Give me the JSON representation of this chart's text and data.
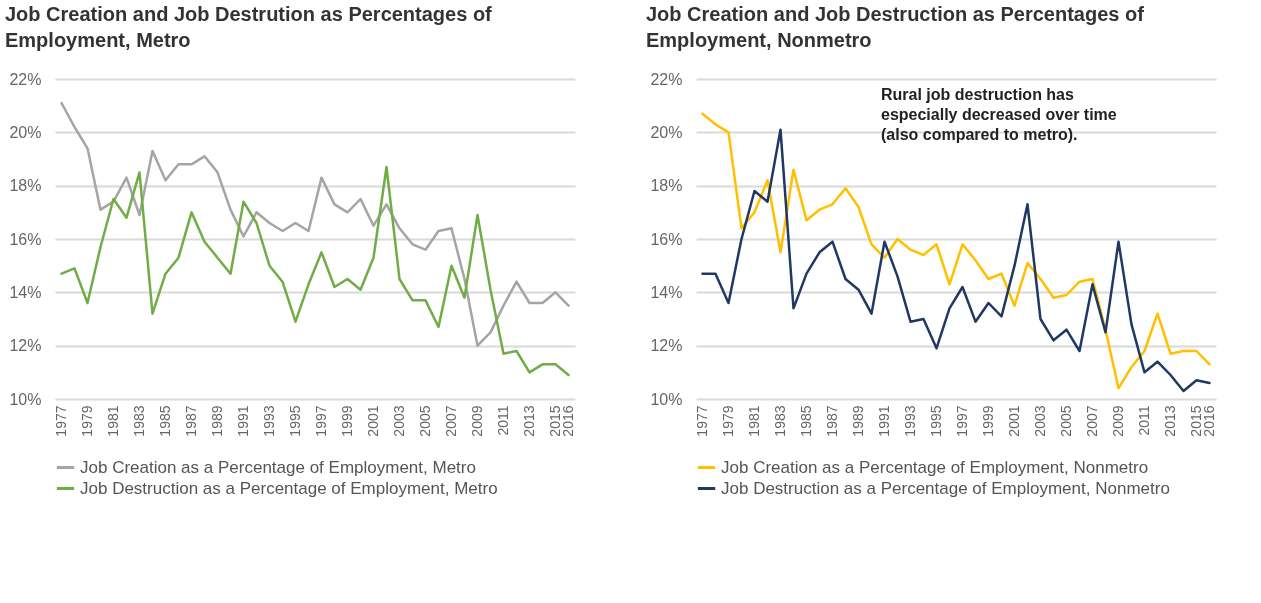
{
  "chart_data": [
    {
      "type": "line",
      "title": "Job Creation and Job Destrution as Percentages of Employment, Metro",
      "categories": [
        "1977",
        null,
        "1979",
        null,
        "1981",
        null,
        "1983",
        null,
        "1985",
        null,
        "1987",
        null,
        "1989",
        null,
        "1991",
        null,
        "1993",
        null,
        "1995",
        null,
        "1997",
        null,
        "1999",
        null,
        "2001",
        null,
        "2003",
        null,
        "2005",
        null,
        "2007",
        null,
        "2009",
        null,
        "2011",
        null,
        "2013",
        null,
        "2015",
        "2016"
      ],
      "series": [
        {
          "name": "Job Creation as a Percentage of Employment, Metro",
          "color": "#a5a5a5",
          "values": [
            21.1,
            20.2,
            19.4,
            17.1,
            17.4,
            18.3,
            16.9,
            19.3,
            18.2,
            18.8,
            18.8,
            19.1,
            18.5,
            17.1,
            16.1,
            17.0,
            16.6,
            16.3,
            16.6,
            16.3,
            18.3,
            17.3,
            17.0,
            17.5,
            16.5,
            17.3,
            16.4,
            15.8,
            15.6,
            16.3,
            16.4,
            14.5,
            12.0,
            12.5,
            13.5,
            14.4,
            13.6,
            13.6,
            14.0,
            13.5
          ]
        },
        {
          "name": "Job Destruction as a Percentage of Employment, Metro",
          "color": "#70ad47",
          "values": [
            14.7,
            14.9,
            13.6,
            15.7,
            17.5,
            16.8,
            18.5,
            13.2,
            14.7,
            15.3,
            17.0,
            15.9,
            15.3,
            14.7,
            17.4,
            16.6,
            15.0,
            14.4,
            12.9,
            14.3,
            15.5,
            14.2,
            14.5,
            14.1,
            15.3,
            18.7,
            14.5,
            13.7,
            13.7,
            12.7,
            15.0,
            13.8,
            16.9,
            14.1,
            11.7,
            11.8,
            11.0,
            11.3,
            11.3,
            10.9
          ]
        }
      ],
      "ylim": [
        10,
        22
      ],
      "yticks": [
        {
          "value": 10,
          "label": "10%"
        },
        {
          "value": 12,
          "label": "12%"
        },
        {
          "value": 14,
          "label": "14%"
        },
        {
          "value": 16,
          "label": "16%"
        },
        {
          "value": 18,
          "label": "18%"
        },
        {
          "value": 20,
          "label": "20%"
        },
        {
          "value": 22,
          "label": "22%"
        }
      ],
      "grid": "y",
      "legend": "bottom",
      "line_style": "solid"
    },
    {
      "type": "line",
      "title": "Job Creation and Job Destruction as Percentages of Employment, Nonmetro",
      "categories": [
        "1977",
        null,
        "1979",
        null,
        "1981",
        null,
        "1983",
        null,
        "1985",
        null,
        "1987",
        null,
        "1989",
        null,
        "1991",
        null,
        "1993",
        null,
        "1995",
        null,
        "1997",
        null,
        "1999",
        null,
        "2001",
        null,
        "2003",
        null,
        "2005",
        null,
        "2007",
        null,
        "2009",
        null,
        "2011",
        null,
        "2013",
        null,
        "2015",
        "2016"
      ],
      "series": [
        {
          "name": "Job Creation as a Percentage of Employment, Nonmetro",
          "color": "#ffc000",
          "values": [
            20.7,
            20.3,
            20.0,
            16.4,
            17.0,
            18.2,
            15.5,
            18.6,
            16.7,
            17.1,
            17.3,
            17.9,
            17.2,
            15.8,
            15.3,
            16.0,
            15.6,
            15.4,
            15.8,
            14.3,
            15.8,
            15.2,
            14.5,
            14.7,
            13.5,
            15.1,
            14.5,
            13.8,
            13.9,
            14.4,
            14.5,
            12.6,
            10.4,
            11.2,
            11.8,
            13.2,
            11.7,
            11.8,
            11.8,
            11.3
          ]
        },
        {
          "name": "Job Destruction as a Percentage of Employment, Nonmetro",
          "color": "#203864",
          "values": [
            14.7,
            14.7,
            13.6,
            16.0,
            17.8,
            17.4,
            20.1,
            13.4,
            14.7,
            15.5,
            15.9,
            14.5,
            14.1,
            13.2,
            15.9,
            14.6,
            12.9,
            13.0,
            11.9,
            13.4,
            14.2,
            12.9,
            13.6,
            13.1,
            15.0,
            17.3,
            13.0,
            12.2,
            12.6,
            11.8,
            14.3,
            12.5,
            15.9,
            12.8,
            11.0,
            11.4,
            10.9,
            10.3,
            10.7,
            10.6
          ]
        }
      ],
      "ylim": [
        10,
        22
      ],
      "yticks": [
        {
          "value": 10,
          "label": "10%"
        },
        {
          "value": 12,
          "label": "12%"
        },
        {
          "value": 14,
          "label": "14%"
        },
        {
          "value": 16,
          "label": "16%"
        },
        {
          "value": 18,
          "label": "18%"
        },
        {
          "value": 20,
          "label": "20%"
        },
        {
          "value": 22,
          "label": "22%"
        }
      ],
      "grid": "y",
      "legend": "bottom",
      "line_style": "solid",
      "annotations": [
        "Rural job destruction has especially decreased over time (also compared to metro)."
      ]
    }
  ]
}
